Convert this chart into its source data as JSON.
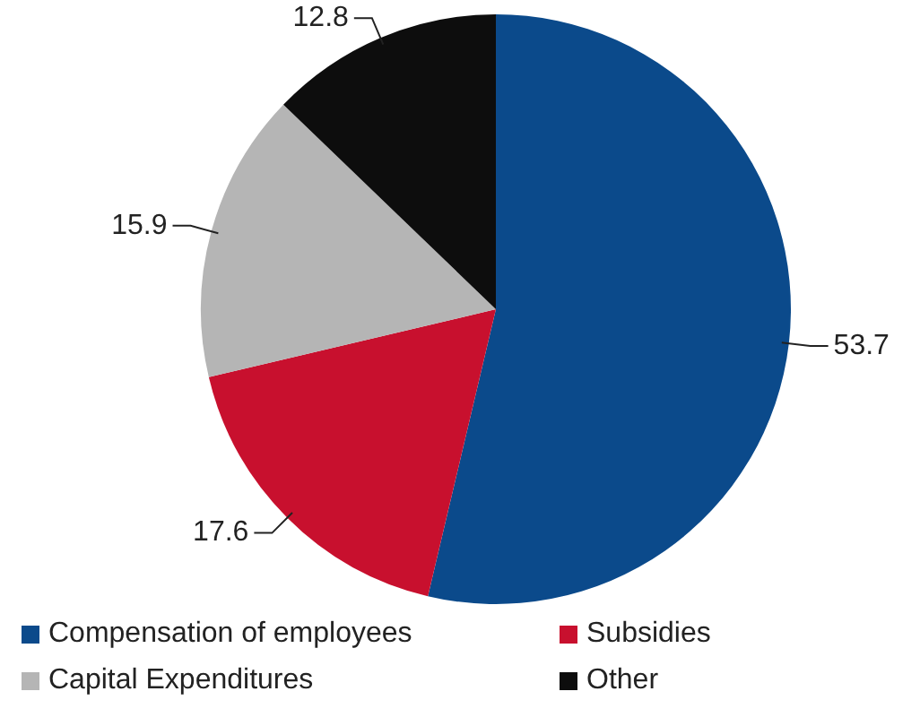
{
  "chart_data": {
    "type": "pie",
    "categories": [
      "Compensation of employees",
      "Subsidies",
      "Capital Expenditures",
      "Other"
    ],
    "values": [
      53.7,
      17.6,
      15.9,
      12.8
    ],
    "colors": [
      "#0b4a8b",
      "#c8102e",
      "#b5b5b5",
      "#0d0d0d"
    ],
    "data_labels": true,
    "legend": "bottom"
  }
}
